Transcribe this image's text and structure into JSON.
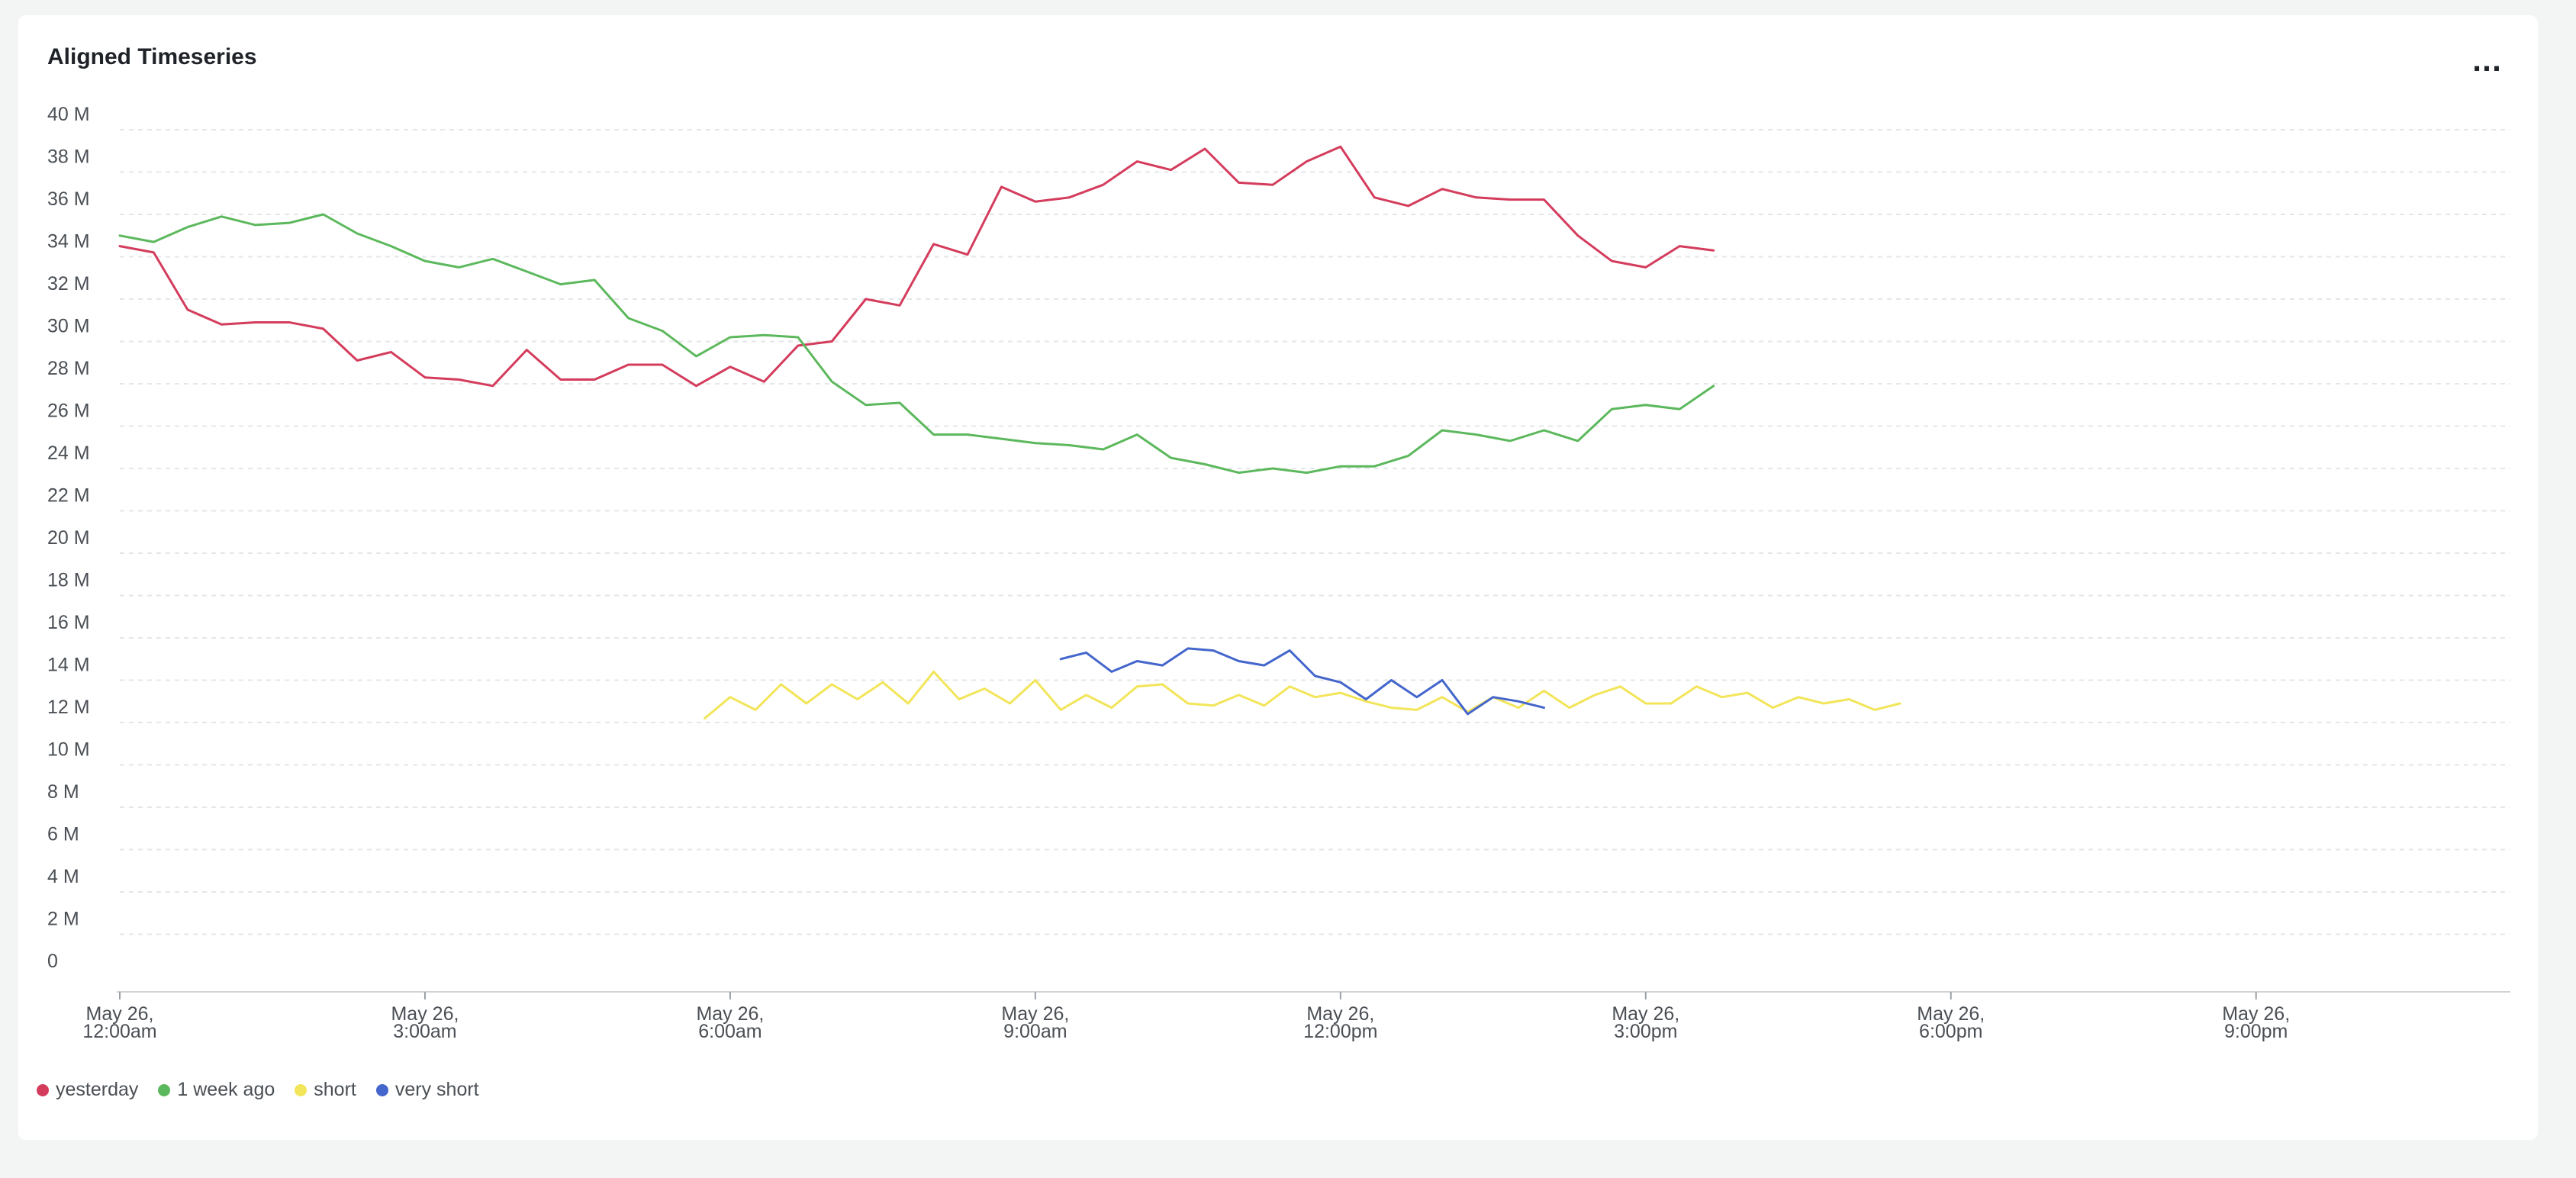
{
  "panel": {
    "title": "Aligned Timeseries",
    "menu_label": "..."
  },
  "chart_data": {
    "type": "line",
    "title": "Aligned Timeseries",
    "x_start": "May 26, 12:00am",
    "x_step_minutes": 20,
    "x_range_minutes": [
      0,
      1410
    ],
    "ylim": [
      0,
      40
    ],
    "y_ticks": [
      0,
      2,
      4,
      6,
      8,
      10,
      12,
      14,
      16,
      18,
      20,
      22,
      24,
      26,
      28,
      30,
      32,
      34,
      36,
      38,
      40
    ],
    "y_tick_labels": [
      "0",
      "2 M",
      "4 M",
      "6 M",
      "8 M",
      "10 M",
      "12 M",
      "14 M",
      "16 M",
      "18 M",
      "20 M",
      "22 M",
      "24 M",
      "26 M",
      "28 M",
      "30 M",
      "32 M",
      "34 M",
      "36 M",
      "38 M",
      "40 M"
    ],
    "x_ticks": [
      {
        "minute": 0,
        "line1": "May 26,",
        "line2": "12:00am"
      },
      {
        "minute": 180,
        "line1": "May 26,",
        "line2": "3:00am"
      },
      {
        "minute": 360,
        "line1": "May 26,",
        "line2": "6:00am"
      },
      {
        "minute": 540,
        "line1": "May 26,",
        "line2": "9:00am"
      },
      {
        "minute": 720,
        "line1": "May 26,",
        "line2": "12:00pm"
      },
      {
        "minute": 900,
        "line1": "May 26,",
        "line2": "3:00pm"
      },
      {
        "minute": 1080,
        "line1": "May 26,",
        "line2": "6:00pm"
      },
      {
        "minute": 1260,
        "line1": "May 26,",
        "line2": "9:00pm"
      }
    ],
    "grid": true,
    "legend_position": "bottom-left",
    "series": [
      {
        "name": "yesterday",
        "color": "#d43c5c",
        "start_minute": 0,
        "values": [
          34.5,
          34.2,
          31.5,
          30.8,
          30.9,
          30.9,
          30.6,
          29.1,
          29.5,
          28.3,
          28.2,
          27.9,
          29.6,
          28.2,
          28.2,
          28.9,
          28.9,
          27.9,
          28.8,
          28.1,
          29.8,
          30.0,
          32.0,
          31.7,
          34.6,
          34.1,
          37.3,
          36.6,
          36.8,
          37.4,
          38.5,
          38.1,
          39.1,
          37.5,
          37.4,
          38.5,
          39.2,
          36.8,
          36.4,
          37.2,
          36.8,
          36.7,
          36.7,
          35.0,
          33.8,
          33.5,
          34.5,
          34.3
        ]
      },
      {
        "name": "1 week ago",
        "color": "#5cb85c",
        "start_minute": 0,
        "values": [
          35.0,
          34.7,
          35.4,
          35.9,
          35.5,
          35.6,
          36.0,
          35.1,
          34.5,
          33.8,
          33.5,
          33.9,
          33.3,
          32.7,
          32.9,
          31.1,
          30.5,
          29.3,
          30.2,
          30.3,
          30.2,
          28.1,
          27.0,
          27.1,
          25.6,
          25.6,
          25.4,
          25.2,
          25.1,
          24.9,
          25.6,
          24.5,
          24.2,
          23.8,
          24.0,
          23.8,
          24.1,
          24.1,
          24.6,
          25.8,
          25.6,
          25.3,
          25.8,
          25.3,
          26.8,
          27.0,
          26.8,
          27.9
        ]
      },
      {
        "name": "short",
        "color": "#f2e55a",
        "start_minute": 345,
        "step_minutes": 15,
        "values": [
          12.2,
          13.2,
          12.6,
          13.8,
          12.9,
          13.8,
          13.1,
          13.9,
          12.9,
          14.4,
          13.1,
          13.6,
          12.9,
          14.0,
          12.6,
          13.3,
          12.7,
          13.7,
          13.8,
          12.9,
          12.8,
          13.3,
          12.8,
          13.7,
          13.2,
          13.4,
          13.0,
          12.7,
          12.6,
          13.2,
          12.5,
          13.2,
          12.7,
          13.5,
          12.7,
          13.3,
          13.7,
          12.9,
          12.9,
          13.7,
          13.2,
          13.4,
          12.7,
          13.2,
          12.9,
          13.1,
          12.6,
          12.9
        ]
      },
      {
        "name": "very short",
        "color": "#4466cc",
        "start_minute": 555,
        "step_minutes": 15,
        "values": [
          15.0,
          15.3,
          14.4,
          14.9,
          14.7,
          15.5,
          15.4,
          14.9,
          14.7,
          15.4,
          14.2,
          13.9,
          13.1,
          14.0,
          13.2,
          14.0,
          12.4,
          13.2,
          13.0,
          12.7
        ]
      }
    ]
  }
}
